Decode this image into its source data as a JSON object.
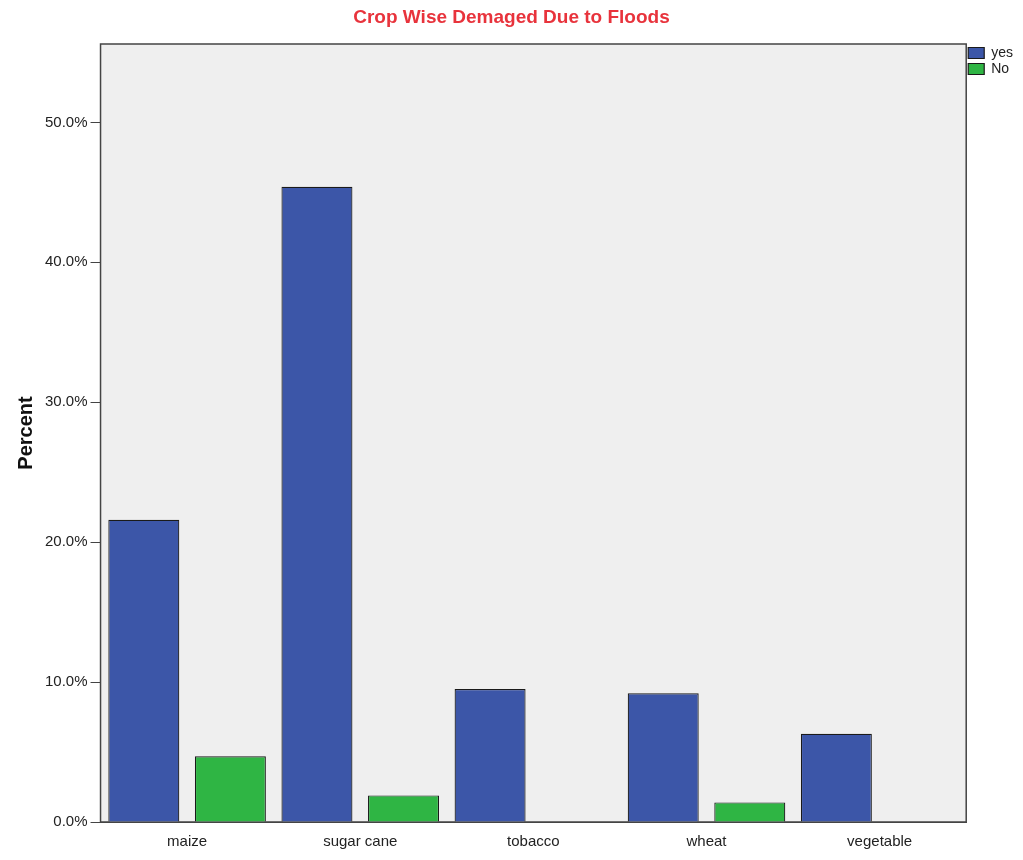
{
  "chart_data": {
    "type": "bar",
    "title": "Crop Wise Demaged Due to Floods",
    "ylabel": "Percent",
    "categories": [
      "maize",
      "sugar cane",
      "tobacco",
      "wheat",
      "vegetable"
    ],
    "series": [
      {
        "name": "yes",
        "color": "#3c56a8",
        "values": [
          21.6,
          45.4,
          9.5,
          9.2,
          6.3
        ]
      },
      {
        "name": "No",
        "color": "#2fb544",
        "values": [
          4.7,
          1.9,
          0,
          1.4,
          0
        ]
      }
    ],
    "ylim": [
      0,
      55.6
    ],
    "yticks": [
      {
        "value": 0,
        "label": "0.0%"
      },
      {
        "value": 10,
        "label": "10.0%"
      },
      {
        "value": 20,
        "label": "20.0%"
      },
      {
        "value": 30,
        "label": "30.0%"
      },
      {
        "value": 40,
        "label": "40.0%"
      },
      {
        "value": 50,
        "label": "50.0%"
      }
    ],
    "grid": false,
    "legend": "top right"
  }
}
